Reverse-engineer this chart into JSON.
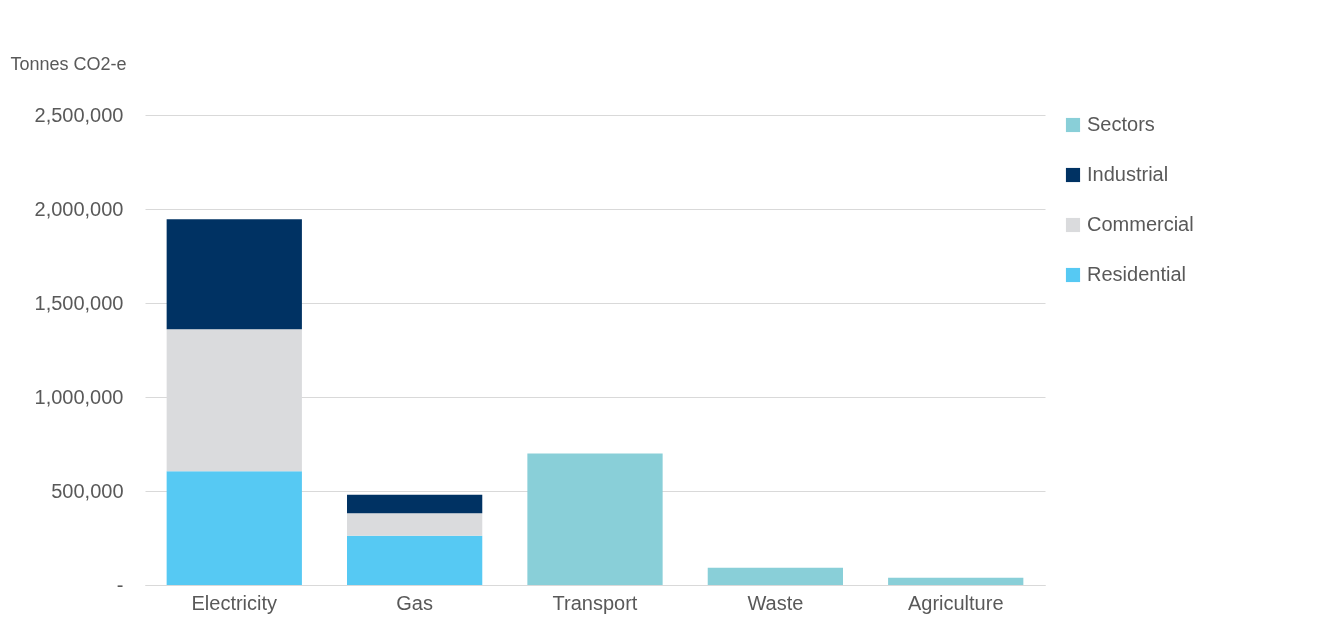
{
  "chart_data": {
    "type": "bar",
    "stacked": true,
    "ylabel": "Tonnes CO2-e",
    "categories": [
      "Electricity",
      "Gas",
      "Transport",
      "Waste",
      "Agriculture"
    ],
    "series": [
      {
        "name": "Residential",
        "color": "#56c9f3",
        "values": [
          605000,
          262000,
          null,
          null,
          null
        ]
      },
      {
        "name": "Commercial",
        "color": "#dadbdd",
        "values": [
          755000,
          120000,
          null,
          null,
          null
        ]
      },
      {
        "name": "Industrial",
        "color": "#003263",
        "values": [
          585000,
          98000,
          null,
          null,
          null
        ]
      },
      {
        "name": "Sectors",
        "color": "#89cfd8",
        "values": [
          null,
          null,
          700000,
          92000,
          39000
        ]
      }
    ],
    "ylim": [
      0,
      2500000
    ],
    "yticks": [
      {
        "value": 0,
        "label": "-"
      },
      {
        "value": 500000,
        "label": "500,000"
      },
      {
        "value": 1000000,
        "label": "1,000,000"
      },
      {
        "value": 1500000,
        "label": "1,500,000"
      },
      {
        "value": 2000000,
        "label": "2,000,000"
      },
      {
        "value": 2500000,
        "label": "2,500,000"
      }
    ],
    "grid": "y",
    "legend": "right"
  }
}
